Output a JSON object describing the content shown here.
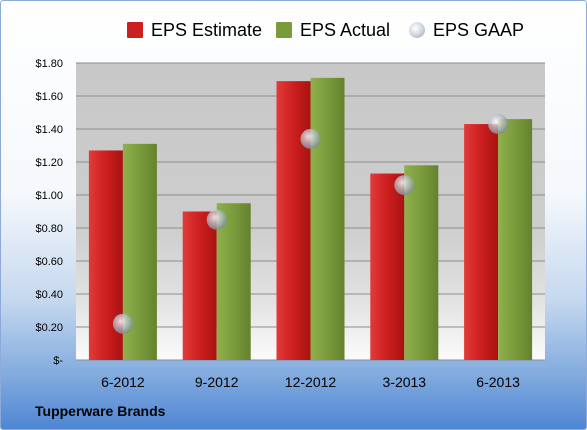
{
  "footer": {
    "company": "Tupperware Brands"
  },
  "colors": {
    "estimate": "#cc1f1f",
    "actual": "#7a9b3c",
    "gaap": "#b8c0cb"
  },
  "chart_data": {
    "type": "bar",
    "categories": [
      "6-2012",
      "9-2012",
      "12-2012",
      "3-2013",
      "6-2013"
    ],
    "series": [
      {
        "name": "EPS Estimate",
        "kind": "bar",
        "values": [
          1.27,
          0.9,
          1.69,
          1.13,
          1.43
        ]
      },
      {
        "name": "EPS Actual",
        "kind": "bar",
        "values": [
          1.31,
          0.95,
          1.71,
          1.18,
          1.46
        ]
      },
      {
        "name": "EPS GAAP",
        "kind": "marker",
        "values": [
          0.22,
          0.85,
          1.34,
          1.06,
          1.43
        ]
      }
    ],
    "ylim": [
      0,
      1.8
    ],
    "yticks": [
      0,
      0.2,
      0.4,
      0.6,
      0.8,
      1.0,
      1.2,
      1.4,
      1.6,
      1.8
    ],
    "ytick_labels": [
      "$-",
      "$0.20",
      "$0.40",
      "$0.60",
      "$0.80",
      "$1.00",
      "$1.20",
      "$1.40",
      "$1.60",
      "$1.80"
    ],
    "grid": true,
    "legend": "top"
  }
}
